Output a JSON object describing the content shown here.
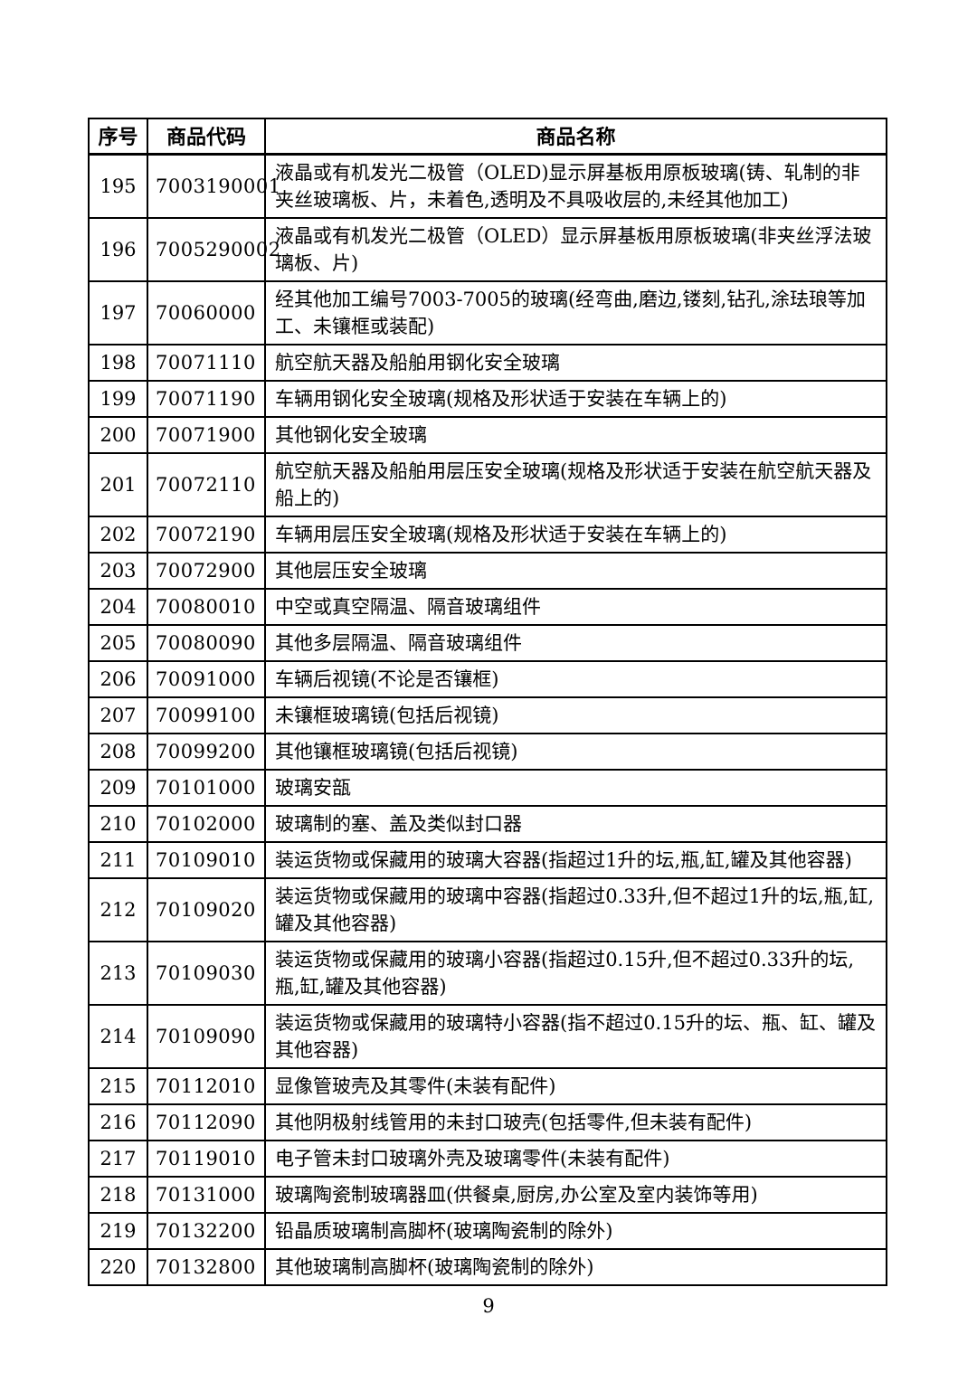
{
  "document": {
    "page_number": "9",
    "colors": {
      "background": "#ffffff",
      "text": "#000000",
      "border": "#000000"
    }
  },
  "table": {
    "headers": {
      "no": "序号",
      "code": "商品代码",
      "name": "商品名称"
    },
    "rows": [
      {
        "no": "195",
        "code": "7003190001",
        "name": "液晶或有机发光二极管（OLED)显示屏基板用原板玻璃(铸、轧制的非夹丝玻璃板、片，未着色,透明及不具吸收层的,未经其他加工)"
      },
      {
        "no": "196",
        "code": "7005290002",
        "name": "液晶或有机发光二极管（OLED）显示屏基板用原板玻璃(非夹丝浮法玻璃板、片)"
      },
      {
        "no": "197",
        "code": "70060000",
        "name": "经其他加工编号7003-7005的玻璃(经弯曲,磨边,镂刻,钻孔,涂珐琅等加工、未镶框或装配)"
      },
      {
        "no": "198",
        "code": "70071110",
        "name": "航空航天器及船舶用钢化安全玻璃"
      },
      {
        "no": "199",
        "code": "70071190",
        "name": "车辆用钢化安全玻璃(规格及形状适于安装在车辆上的)"
      },
      {
        "no": "200",
        "code": "70071900",
        "name": "其他钢化安全玻璃"
      },
      {
        "no": "201",
        "code": "70072110",
        "name": "航空航天器及船舶用层压安全玻璃(规格及形状适于安装在航空航天器及船上的)"
      },
      {
        "no": "202",
        "code": "70072190",
        "name": "车辆用层压安全玻璃(规格及形状适于安装在车辆上的)"
      },
      {
        "no": "203",
        "code": "70072900",
        "name": "其他层压安全玻璃"
      },
      {
        "no": "204",
        "code": "70080010",
        "name": "中空或真空隔温、隔音玻璃组件"
      },
      {
        "no": "205",
        "code": "70080090",
        "name": "其他多层隔温、隔音玻璃组件"
      },
      {
        "no": "206",
        "code": "70091000",
        "name": "车辆后视镜(不论是否镶框)"
      },
      {
        "no": "207",
        "code": "70099100",
        "name": "未镶框玻璃镜(包括后视镜)"
      },
      {
        "no": "208",
        "code": "70099200",
        "name": "其他镶框玻璃镜(包括后视镜)"
      },
      {
        "no": "209",
        "code": "70101000",
        "name": "玻璃安瓿"
      },
      {
        "no": "210",
        "code": "70102000",
        "name": "玻璃制的塞、盖及类似封口器"
      },
      {
        "no": "211",
        "code": "70109010",
        "name": "装运货物或保藏用的玻璃大容器(指超过1升的坛,瓶,缸,罐及其他容器)"
      },
      {
        "no": "212",
        "code": "70109020",
        "name": "装运货物或保藏用的玻璃中容器(指超过0.33升,但不超过1升的坛,瓶,缸,罐及其他容器)"
      },
      {
        "no": "213",
        "code": "70109030",
        "name": "装运货物或保藏用的玻璃小容器(指超过0.15升,但不超过0.33升的坛,瓶,缸,罐及其他容器)"
      },
      {
        "no": "214",
        "code": "70109090",
        "name": "装运货物或保藏用的玻璃特小容器(指不超过0.15升的坛、瓶、缸、罐及其他容器)"
      },
      {
        "no": "215",
        "code": "70112010",
        "name": "显像管玻壳及其零件(未装有配件)"
      },
      {
        "no": "216",
        "code": "70112090",
        "name": "其他阴极射线管用的未封口玻壳(包括零件,但未装有配件)"
      },
      {
        "no": "217",
        "code": "70119010",
        "name": "电子管未封口玻璃外壳及玻璃零件(未装有配件)"
      },
      {
        "no": "218",
        "code": "70131000",
        "name": "玻璃陶瓷制玻璃器皿(供餐桌,厨房,办公室及室内装饰等用)"
      },
      {
        "no": "219",
        "code": "70132200",
        "name": "铅晶质玻璃制高脚杯(玻璃陶瓷制的除外)"
      },
      {
        "no": "220",
        "code": "70132800",
        "name": "其他玻璃制高脚杯(玻璃陶瓷制的除外)"
      }
    ]
  }
}
